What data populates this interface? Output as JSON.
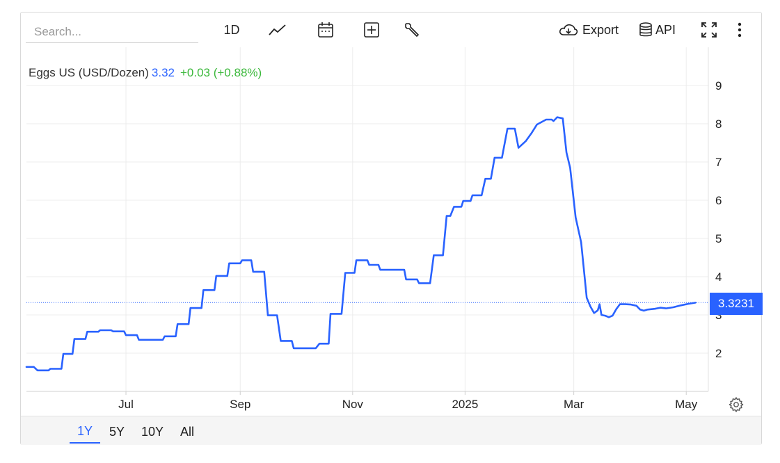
{
  "toolbar": {
    "search_placeholder": "Search...",
    "interval_label": "1D",
    "export_label": "Export",
    "api_label": "API",
    "icons": [
      "line-chart-icon",
      "calendar-icon",
      "add-icon",
      "wrench-icon",
      "cloud-download-icon",
      "database-icon",
      "fullscreen-icon",
      "more-vertical-icon"
    ]
  },
  "legend": {
    "name": "Eggs US (USD/Dozen)",
    "value": "3.32",
    "change": "+0.03 (+0.88%)",
    "value_color": "#2962ff",
    "change_color": "#3bb83b"
  },
  "price_tag": "3.3231",
  "ranges": [
    {
      "label": "1Y",
      "active": true
    },
    {
      "label": "5Y",
      "active": false
    },
    {
      "label": "10Y",
      "active": false
    },
    {
      "label": "All",
      "active": false
    }
  ],
  "chart_data": {
    "type": "line",
    "title": "Eggs US (USD/Dozen)",
    "xlabel": "",
    "ylabel": "",
    "x_ticks": [
      {
        "label": "Jul",
        "date": "2024-07-01"
      },
      {
        "label": "Sep",
        "date": "2024-09-01"
      },
      {
        "label": "Nov",
        "date": "2024-11-01"
      },
      {
        "label": "2025",
        "date": "2025-01-01"
      },
      {
        "label": "Mar",
        "date": "2025-03-01"
      },
      {
        "label": "May",
        "date": "2025-05-01"
      }
    ],
    "y_ticks": [
      2,
      3,
      4,
      5,
      6,
      7,
      8,
      9
    ],
    "ylim": [
      1,
      10
    ],
    "xlim": [
      "2024-05-08",
      "2025-05-13"
    ],
    "last_value": 3.3231,
    "line_color": "#2962ff",
    "grid": true,
    "series": [
      {
        "name": "Eggs US (USD/Dozen)",
        "points": [
          [
            "2024-05-08",
            1.64
          ],
          [
            "2024-05-12",
            1.64
          ],
          [
            "2024-05-14",
            1.55
          ],
          [
            "2024-05-20",
            1.55
          ],
          [
            "2024-05-21",
            1.59
          ],
          [
            "2024-05-27",
            1.59
          ],
          [
            "2024-05-28",
            1.98
          ],
          [
            "2024-06-02",
            1.98
          ],
          [
            "2024-06-03",
            2.37
          ],
          [
            "2024-06-09",
            2.37
          ],
          [
            "2024-06-10",
            2.56
          ],
          [
            "2024-06-16",
            2.56
          ],
          [
            "2024-06-17",
            2.6
          ],
          [
            "2024-06-23",
            2.6
          ],
          [
            "2024-06-24",
            2.57
          ],
          [
            "2024-06-30",
            2.57
          ],
          [
            "2024-07-01",
            2.47
          ],
          [
            "2024-07-07",
            2.47
          ],
          [
            "2024-07-08",
            2.35
          ],
          [
            "2024-07-21",
            2.35
          ],
          [
            "2024-07-22",
            2.44
          ],
          [
            "2024-07-28",
            2.44
          ],
          [
            "2024-07-29",
            2.76
          ],
          [
            "2024-08-04",
            2.76
          ],
          [
            "2024-08-05",
            3.18
          ],
          [
            "2024-08-11",
            3.18
          ],
          [
            "2024-08-12",
            3.65
          ],
          [
            "2024-08-18",
            3.65
          ],
          [
            "2024-08-19",
            4.02
          ],
          [
            "2024-08-25",
            4.02
          ],
          [
            "2024-08-26",
            4.35
          ],
          [
            "2024-09-01",
            4.35
          ],
          [
            "2024-09-02",
            4.43
          ],
          [
            "2024-09-07",
            4.43
          ],
          [
            "2024-09-08",
            4.13
          ],
          [
            "2024-09-14",
            4.13
          ],
          [
            "2024-09-16",
            2.99
          ],
          [
            "2024-09-21",
            2.99
          ],
          [
            "2024-09-23",
            2.32
          ],
          [
            "2024-09-29",
            2.32
          ],
          [
            "2024-09-30",
            2.13
          ],
          [
            "2024-10-12",
            2.13
          ],
          [
            "2024-10-14",
            2.25
          ],
          [
            "2024-10-19",
            2.25
          ],
          [
            "2024-10-20",
            3.03
          ],
          [
            "2024-10-26",
            3.03
          ],
          [
            "2024-10-28",
            4.1
          ],
          [
            "2024-11-02",
            4.1
          ],
          [
            "2024-11-03",
            4.43
          ],
          [
            "2024-11-09",
            4.43
          ],
          [
            "2024-11-10",
            4.31
          ],
          [
            "2024-11-15",
            4.31
          ],
          [
            "2024-11-16",
            4.18
          ],
          [
            "2024-11-29",
            4.18
          ],
          [
            "2024-11-30",
            3.93
          ],
          [
            "2024-12-06",
            3.93
          ],
          [
            "2024-12-07",
            3.83
          ],
          [
            "2024-12-13",
            3.83
          ],
          [
            "2024-12-15",
            4.56
          ],
          [
            "2024-12-20",
            4.56
          ],
          [
            "2024-12-22",
            5.59
          ],
          [
            "2024-12-24",
            5.59
          ],
          [
            "2024-12-26",
            5.83
          ],
          [
            "2024-12-30",
            5.83
          ],
          [
            "2024-12-31",
            5.98
          ],
          [
            "2025-01-04",
            5.98
          ],
          [
            "2025-01-05",
            6.13
          ],
          [
            "2025-01-10",
            6.13
          ],
          [
            "2025-01-12",
            6.56
          ],
          [
            "2025-01-15",
            6.56
          ],
          [
            "2025-01-17",
            7.11
          ],
          [
            "2025-01-21",
            7.11
          ],
          [
            "2025-01-24",
            7.87
          ],
          [
            "2025-01-28",
            7.87
          ],
          [
            "2025-01-30",
            7.37
          ],
          [
            "2025-02-03",
            7.55
          ],
          [
            "2025-02-06",
            7.75
          ],
          [
            "2025-02-09",
            7.98
          ],
          [
            "2025-02-14",
            8.11
          ],
          [
            "2025-02-17",
            8.11
          ],
          [
            "2025-02-18",
            8.07
          ],
          [
            "2025-02-20",
            8.17
          ],
          [
            "2025-02-23",
            8.14
          ],
          [
            "2025-02-25",
            7.25
          ],
          [
            "2025-02-27",
            6.85
          ],
          [
            "2025-03-02",
            5.55
          ],
          [
            "2025-03-05",
            4.9
          ],
          [
            "2025-03-08",
            3.45
          ],
          [
            "2025-03-10",
            3.22
          ],
          [
            "2025-03-12",
            3.05
          ],
          [
            "2025-03-14",
            3.12
          ],
          [
            "2025-03-15",
            3.28
          ],
          [
            "2025-03-16",
            3.0
          ],
          [
            "2025-03-18",
            2.98
          ],
          [
            "2025-03-20",
            2.94
          ],
          [
            "2025-03-22",
            2.98
          ],
          [
            "2025-03-24",
            3.15
          ],
          [
            "2025-03-26",
            3.28
          ],
          [
            "2025-03-29",
            3.28
          ],
          [
            "2025-04-01",
            3.27
          ],
          [
            "2025-04-04",
            3.24
          ],
          [
            "2025-04-06",
            3.14
          ],
          [
            "2025-04-08",
            3.11
          ],
          [
            "2025-04-10",
            3.14
          ],
          [
            "2025-04-14",
            3.16
          ],
          [
            "2025-04-17",
            3.19
          ],
          [
            "2025-04-20",
            3.17
          ],
          [
            "2025-04-24",
            3.2
          ],
          [
            "2025-04-28",
            3.25
          ],
          [
            "2025-05-02",
            3.29
          ],
          [
            "2025-05-06",
            3.32
          ]
        ]
      }
    ]
  }
}
